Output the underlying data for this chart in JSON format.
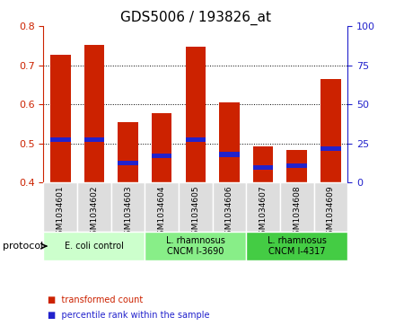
{
  "title": "GDS5006 / 193826_at",
  "samples": [
    "GSM1034601",
    "GSM1034602",
    "GSM1034603",
    "GSM1034604",
    "GSM1034605",
    "GSM1034606",
    "GSM1034607",
    "GSM1034608",
    "GSM1034609"
  ],
  "transformed_count": [
    0.727,
    0.752,
    0.555,
    0.578,
    0.747,
    0.604,
    0.492,
    0.484,
    0.664
  ],
  "percentile_rank": [
    0.51,
    0.51,
    0.45,
    0.468,
    0.51,
    0.472,
    0.438,
    0.443,
    0.487
  ],
  "ylim_left": [
    0.4,
    0.8
  ],
  "ylim_right": [
    0,
    100
  ],
  "yticks_left": [
    0.4,
    0.5,
    0.6,
    0.7,
    0.8
  ],
  "yticks_right": [
    0,
    25,
    50,
    75,
    100
  ],
  "bar_color": "#cc2200",
  "percentile_color": "#2222cc",
  "bar_width": 0.6,
  "grid_color": "#000000",
  "protocols": [
    {
      "label": "E. coli control",
      "start": 0,
      "end": 3,
      "color": "#ccffcc"
    },
    {
      "label": "L. rhamnosus\nCNCM I-3690",
      "start": 3,
      "end": 6,
      "color": "#88ee88"
    },
    {
      "label": "L. rhamnosus\nCNCM I-4317",
      "start": 6,
      "end": 9,
      "color": "#44cc44"
    }
  ],
  "legend_items": [
    {
      "label": "transformed count",
      "color": "#cc2200"
    },
    {
      "label": "percentile rank within the sample",
      "color": "#2222cc"
    }
  ],
  "protocol_label": "protocol",
  "title_fontsize": 11,
  "tick_fontsize": 8,
  "axis_color_left": "#cc2200",
  "axis_color_right": "#2222cc"
}
